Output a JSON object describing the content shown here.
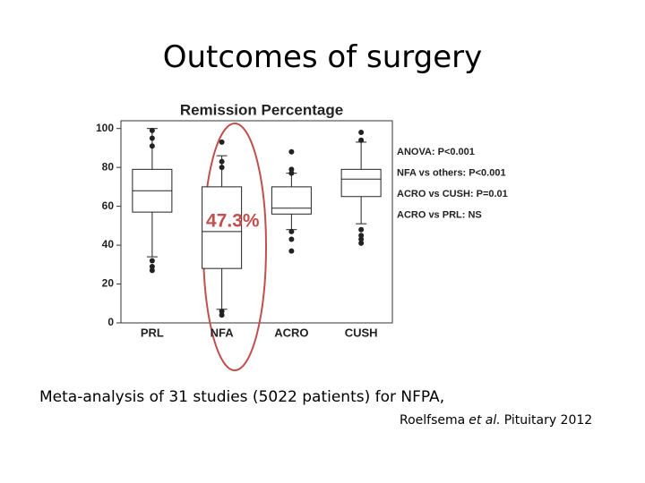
{
  "title": "Outcomes of surgery",
  "caption": "Meta-analysis of 31 studies (5022 patients) for NFPA,",
  "citation": [
    "Roelfsema",
    "et al.",
    "Pituitary 2012"
  ],
  "chart_data": {
    "type": "box",
    "title": "Remission Percentage",
    "categories": [
      "PRL",
      "NFA",
      "ACRO",
      "CUSH"
    ],
    "boxes": [
      {
        "whisker_low": 34,
        "q1": 57,
        "median": 68,
        "q3": 79,
        "whisker_high": 100,
        "outliers": [
          99,
          95,
          91,
          32,
          29,
          27
        ]
      },
      {
        "whisker_low": 7,
        "q1": 28,
        "median": 47,
        "q3": 70,
        "whisker_high": 86,
        "outliers": [
          93,
          83,
          80,
          6,
          4
        ]
      },
      {
        "whisker_low": 48,
        "q1": 56,
        "median": 59,
        "q3": 70,
        "whisker_high": 77,
        "outliers": [
          88,
          79,
          77,
          47,
          43,
          37
        ]
      },
      {
        "whisker_low": 51,
        "q1": 65,
        "median": 74,
        "q3": 79,
        "whisker_high": 93,
        "outliers": [
          98,
          94,
          48,
          45,
          43,
          41
        ]
      }
    ],
    "ylim": [
      0,
      104
    ],
    "yticks": [
      0,
      20,
      40,
      60,
      80,
      100
    ],
    "annotations": [
      "ANOVA: P<0.001",
      "NFA vs others: P<0.001",
      "ACRO vs CUSH: P=0.01",
      "ACRO vs PRL: NS"
    ],
    "highlight": "47.3%",
    "highlight_color": "#c0504d",
    "color": "#222"
  }
}
